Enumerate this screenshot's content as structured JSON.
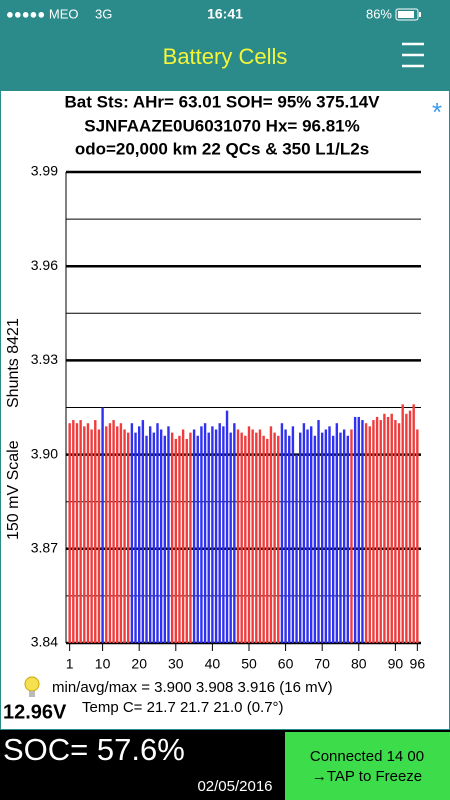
{
  "status_bar": {
    "carrier": "●●●●● MEO",
    "network": "3G",
    "time": "16:41",
    "battery": "86%"
  },
  "header": {
    "title": "Battery Cells"
  },
  "info": {
    "lines": [
      "Bat Sts: AHr= 63.01 SOH= 95% 375.14V",
      "SJNFAAZE0U6031070   Hx= 96.81%",
      "odo=20,000 km 22 QCs & 350 L1/L2s"
    ],
    "asterisk": "*"
  },
  "chart_data": {
    "type": "bar",
    "ylabel": "150 mV Scale",
    "annotation": "Shunts 8421",
    "x": [
      1,
      2,
      3,
      4,
      5,
      6,
      7,
      8,
      9,
      10,
      11,
      12,
      13,
      14,
      15,
      16,
      17,
      18,
      19,
      20,
      21,
      22,
      23,
      24,
      25,
      26,
      27,
      28,
      29,
      30,
      31,
      32,
      33,
      34,
      35,
      36,
      37,
      38,
      39,
      40,
      41,
      42,
      43,
      44,
      45,
      46,
      47,
      48,
      49,
      50,
      51,
      52,
      53,
      54,
      55,
      56,
      57,
      58,
      59,
      60,
      61,
      62,
      63,
      64,
      65,
      66,
      67,
      68,
      69,
      70,
      71,
      72,
      73,
      74,
      75,
      76,
      77,
      78,
      79,
      80,
      81,
      82,
      83,
      84,
      85,
      86,
      87,
      88,
      89,
      90,
      91,
      92,
      93,
      94,
      95,
      96
    ],
    "values": [
      3.91,
      3.911,
      3.91,
      3.911,
      3.909,
      3.91,
      3.908,
      3.911,
      3.908,
      3.915,
      3.909,
      3.91,
      3.911,
      3.909,
      3.91,
      3.908,
      3.907,
      3.91,
      3.907,
      3.909,
      3.911,
      3.906,
      3.909,
      3.907,
      3.91,
      3.908,
      3.906,
      3.909,
      3.907,
      3.905,
      3.906,
      3.908,
      3.905,
      3.907,
      3.908,
      3.906,
      3.909,
      3.91,
      3.907,
      3.909,
      3.908,
      3.91,
      3.909,
      3.914,
      3.907,
      3.91,
      3.908,
      3.907,
      3.906,
      3.909,
      3.908,
      3.907,
      3.908,
      3.906,
      3.905,
      3.909,
      3.907,
      3.906,
      3.91,
      3.908,
      3.906,
      3.909,
      3.9,
      3.907,
      3.91,
      3.908,
      3.909,
      3.906,
      3.911,
      3.907,
      3.908,
      3.909,
      3.906,
      3.91,
      3.907,
      3.908,
      3.906,
      3.908,
      3.912,
      3.912,
      3.911,
      3.91,
      3.909,
      3.911,
      3.912,
      3.911,
      3.913,
      3.912,
      3.913,
      3.911,
      3.91,
      3.916,
      3.913,
      3.914,
      3.916,
      3.908
    ],
    "colors": [
      "#f03c3c",
      "#f03c3c",
      "#f03c3c",
      "#f03c3c",
      "#f03c3c",
      "#f03c3c",
      "#f03c3c",
      "#f03c3c",
      "#f03c3c",
      "#3030f0",
      "#f03c3c",
      "#f03c3c",
      "#f03c3c",
      "#f03c3c",
      "#f03c3c",
      "#f03c3c",
      "#f03c3c",
      "#3030f0",
      "#3030f0",
      "#3030f0",
      "#3030f0",
      "#3030f0",
      "#3030f0",
      "#3030f0",
      "#3030f0",
      "#3030f0",
      "#3030f0",
      "#3030f0",
      "#f03c3c",
      "#f03c3c",
      "#f03c3c",
      "#f03c3c",
      "#f03c3c",
      "#f03c3c",
      "#3030f0",
      "#3030f0",
      "#3030f0",
      "#3030f0",
      "#3030f0",
      "#3030f0",
      "#3030f0",
      "#3030f0",
      "#3030f0",
      "#3030f0",
      "#3030f0",
      "#3030f0",
      "#f03c3c",
      "#f03c3c",
      "#f03c3c",
      "#f03c3c",
      "#f03c3c",
      "#f03c3c",
      "#f03c3c",
      "#f03c3c",
      "#f03c3c",
      "#f03c3c",
      "#f03c3c",
      "#f03c3c",
      "#3030f0",
      "#3030f0",
      "#3030f0",
      "#3030f0",
      "#3030f0",
      "#3030f0",
      "#3030f0",
      "#3030f0",
      "#3030f0",
      "#3030f0",
      "#3030f0",
      "#3030f0",
      "#3030f0",
      "#3030f0",
      "#3030f0",
      "#3030f0",
      "#3030f0",
      "#3030f0",
      "#3030f0",
      "#f03c3c",
      "#3030f0",
      "#3030f0",
      "#3030f0",
      "#f03c3c",
      "#f03c3c",
      "#f03c3c",
      "#f03c3c",
      "#f03c3c",
      "#f03c3c",
      "#f03c3c",
      "#f03c3c",
      "#f03c3c",
      "#f03c3c",
      "#f03c3c",
      "#f03c3c",
      "#f03c3c",
      "#f03c3c",
      "#f03c3c"
    ],
    "xlim": [
      0,
      97
    ],
    "xticks": [
      1,
      10,
      20,
      30,
      40,
      50,
      60,
      70,
      80,
      90,
      96
    ],
    "ylim": [
      3.84,
      3.99
    ],
    "yticks": [
      3.99,
      3.96,
      3.93,
      {
        "value": 3.9,
        "label": "3.90"
      },
      3.87,
      3.84
    ],
    "yminor": [
      3.975,
      3.945,
      3.915,
      3.885,
      3.855
    ],
    "grid": true
  },
  "stats": {
    "pack_voltage": "12.96V",
    "min_avg_max": "min/avg/max = 3.900  3.908  3.916  (16 mV)",
    "temp": "Temp C= 21.7  21.7  21.0  (0.7°)"
  },
  "footer": {
    "soc": "SOC= 57.6%",
    "date": "02/05/2016",
    "button": [
      "Connected 14 00",
      "→TAP to Freeze"
    ]
  }
}
